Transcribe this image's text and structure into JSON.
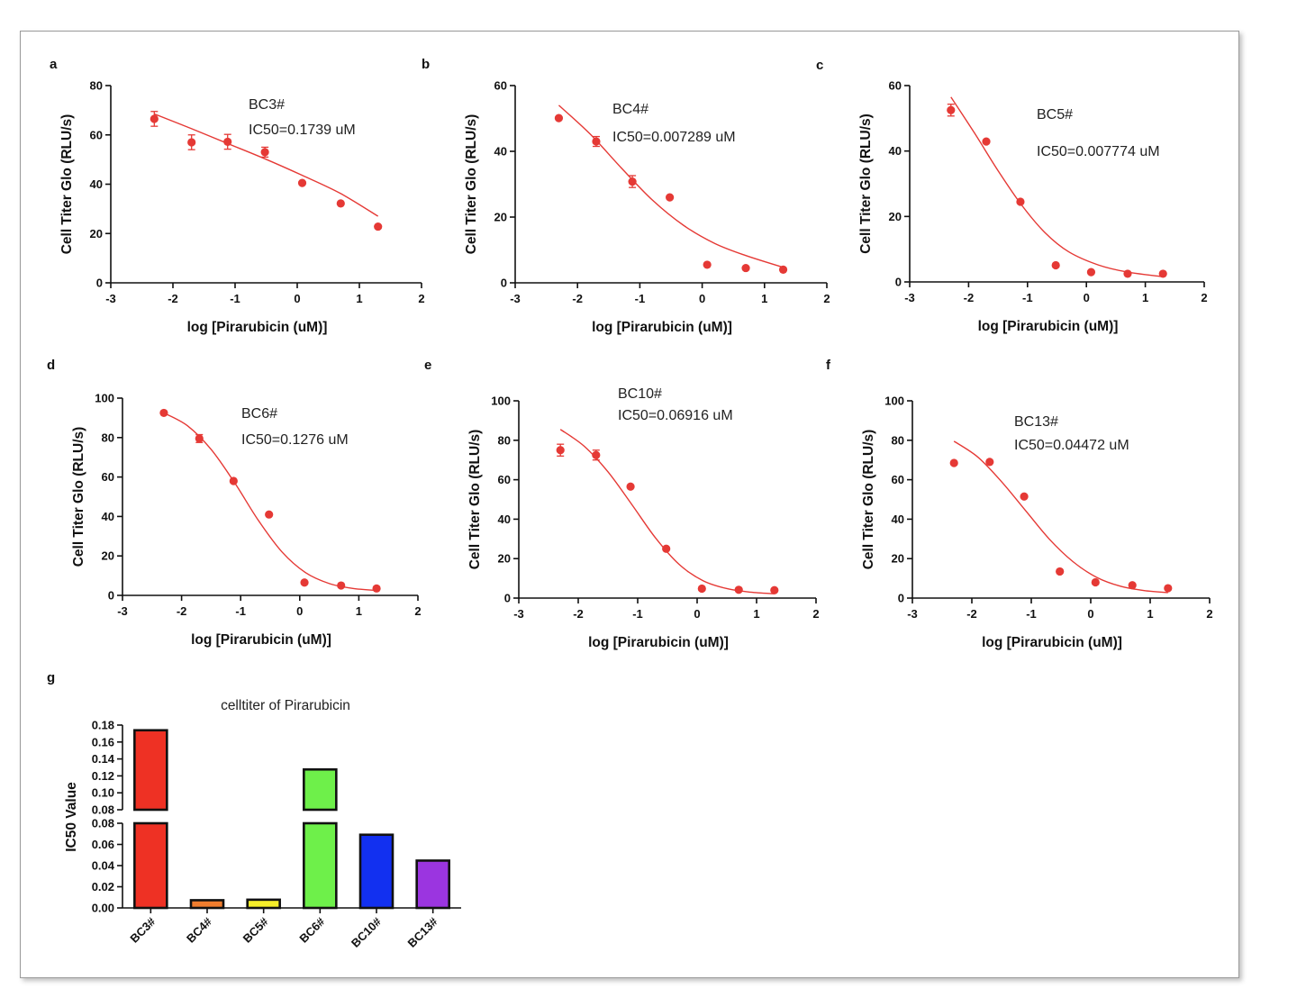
{
  "panel_labels": [
    "a",
    "b",
    "c",
    "d",
    "e",
    "f",
    "g"
  ],
  "chart_data": [
    {
      "type": "scatter",
      "panel": "a",
      "xlabel": "log [Pirarubicin (uM)]",
      "ylabel": "Cell Titer Glo (RLU/s)",
      "xlim": [
        -3,
        2
      ],
      "ylim": [
        0,
        80
      ],
      "xticks": [
        -3,
        -2,
        -1,
        0,
        1,
        2
      ],
      "yticks": [
        0,
        20,
        40,
        60,
        80
      ],
      "annotations": [
        "BC3#",
        "IC50=0.1739 uM"
      ],
      "points": [
        {
          "x": -2.3,
          "y": 66.5,
          "err": 3
        },
        {
          "x": -1.7,
          "y": 57,
          "err": 3
        },
        {
          "x": -1.12,
          "y": 57.2,
          "err": 3
        },
        {
          "x": -0.52,
          "y": 53,
          "err": 2
        },
        {
          "x": 0.08,
          "y": 40.5
        },
        {
          "x": 0.7,
          "y": 32.2
        },
        {
          "x": 1.3,
          "y": 22.8
        }
      ],
      "fit": [
        [
          -2.3,
          68.5
        ],
        [
          -1.7,
          62.5
        ],
        [
          -1.12,
          56.5
        ],
        [
          -0.52,
          50.3
        ],
        [
          0.08,
          43.6
        ],
        [
          0.7,
          36.2
        ],
        [
          1.3,
          27
        ]
      ]
    },
    {
      "type": "scatter",
      "panel": "b",
      "xlabel": "log [Pirarubicin (uM)]",
      "ylabel": "Cell Titer Glo (RLU/s)",
      "xlim": [
        -3,
        2
      ],
      "ylim": [
        0,
        60
      ],
      "xticks": [
        -3,
        -2,
        -1,
        0,
        1,
        2
      ],
      "yticks": [
        0,
        20,
        40,
        60
      ],
      "annotations": [
        "BC4#",
        "IC50=0.007289 uM"
      ],
      "points": [
        {
          "x": -2.3,
          "y": 50.1
        },
        {
          "x": -1.7,
          "y": 43,
          "err": 1.5
        },
        {
          "x": -1.12,
          "y": 30.8,
          "err": 1.8
        },
        {
          "x": -0.52,
          "y": 26
        },
        {
          "x": 0.08,
          "y": 5.5
        },
        {
          "x": 0.7,
          "y": 4.5
        },
        {
          "x": 1.3,
          "y": 4
        }
      ],
      "fit": [
        [
          -2.3,
          54
        ],
        [
          -1.8,
          45.3
        ],
        [
          -1.3,
          35
        ],
        [
          -0.8,
          25.2
        ],
        [
          -0.3,
          17.5
        ],
        [
          0.2,
          12
        ],
        [
          0.7,
          8.3
        ],
        [
          1.3,
          4.7
        ]
      ]
    },
    {
      "type": "scatter",
      "panel": "c",
      "xlabel": "log [Pirarubicin (uM)]",
      "ylabel": "Cell Titer Glo (RLU/s)",
      "xlim": [
        -3,
        2
      ],
      "ylim": [
        0,
        60
      ],
      "xticks": [
        -3,
        -2,
        -1,
        0,
        1,
        2
      ],
      "yticks": [
        0,
        20,
        40,
        60
      ],
      "annotations": [
        "BC5#",
        "IC50=0.007774 uM"
      ],
      "points": [
        {
          "x": -2.3,
          "y": 52.5,
          "err": 1.8
        },
        {
          "x": -1.7,
          "y": 42.9
        },
        {
          "x": -1.12,
          "y": 24.5
        },
        {
          "x": -0.52,
          "y": 5.1
        },
        {
          "x": 0.08,
          "y": 3
        },
        {
          "x": 0.7,
          "y": 2.5
        },
        {
          "x": 1.3,
          "y": 2.5
        }
      ],
      "fit": [
        [
          -2.3,
          56.5
        ],
        [
          -1.9,
          45.5
        ],
        [
          -1.5,
          34
        ],
        [
          -1.1,
          23.5
        ],
        [
          -0.7,
          15
        ],
        [
          -0.3,
          9.2
        ],
        [
          0.2,
          5.2
        ],
        [
          0.7,
          3
        ],
        [
          1.3,
          1.6
        ]
      ]
    },
    {
      "type": "scatter",
      "panel": "d",
      "xlabel": "log [Pirarubicin (uM)]",
      "ylabel": "Cell Titer Glo (RLU/s)",
      "xlim": [
        -3,
        2
      ],
      "ylim": [
        0,
        100
      ],
      "xticks": [
        -3,
        -2,
        -1,
        0,
        1,
        2
      ],
      "yticks": [
        0,
        20,
        40,
        60,
        80,
        100
      ],
      "annotations": [
        "BC6#",
        "IC50=0.1276 uM"
      ],
      "points": [
        {
          "x": -2.3,
          "y": 92.5
        },
        {
          "x": -1.7,
          "y": 79.5,
          "err": 2
        },
        {
          "x": -1.12,
          "y": 58
        },
        {
          "x": -0.52,
          "y": 41
        },
        {
          "x": 0.08,
          "y": 6.5
        },
        {
          "x": 0.7,
          "y": 5
        },
        {
          "x": 1.3,
          "y": 3.5
        }
      ],
      "fit": [
        [
          -2.3,
          92.5
        ],
        [
          -1.9,
          86
        ],
        [
          -1.5,
          74
        ],
        [
          -1.1,
          57
        ],
        [
          -0.7,
          38
        ],
        [
          -0.3,
          22
        ],
        [
          0.1,
          11.5
        ],
        [
          0.5,
          6
        ],
        [
          0.9,
          3.5
        ],
        [
          1.3,
          2.5
        ]
      ]
    },
    {
      "type": "scatter",
      "panel": "e",
      "xlabel": "log [Pirarubicin (uM)]",
      "ylabel": "Cell Titer Glo (RLU/s)",
      "xlim": [
        -3,
        2
      ],
      "ylim": [
        0,
        100
      ],
      "xticks": [
        -3,
        -2,
        -1,
        0,
        1,
        2
      ],
      "yticks": [
        0,
        20,
        40,
        60,
        80,
        100
      ],
      "annotations": [
        "BC10#",
        "IC50=0.06916 uM"
      ],
      "points": [
        {
          "x": -2.3,
          "y": 75,
          "err": 3
        },
        {
          "x": -1.7,
          "y": 72.5,
          "err": 2.5
        },
        {
          "x": -1.12,
          "y": 56.5
        },
        {
          "x": -0.52,
          "y": 25
        },
        {
          "x": 0.08,
          "y": 4.8
        },
        {
          "x": 0.7,
          "y": 4.2
        },
        {
          "x": 1.3,
          "y": 4
        }
      ],
      "fit": [
        [
          -2.3,
          85.5
        ],
        [
          -1.9,
          77
        ],
        [
          -1.5,
          64
        ],
        [
          -1.1,
          47.5
        ],
        [
          -0.7,
          30.5
        ],
        [
          -0.3,
          17
        ],
        [
          0.1,
          8.8
        ],
        [
          0.5,
          4.8
        ],
        [
          0.9,
          3
        ],
        [
          1.3,
          2.2
        ]
      ]
    },
    {
      "type": "scatter",
      "panel": "f",
      "xlabel": "log [Pirarubicin (uM)]",
      "ylabel": "Cell Titer Glo (RLU/s)",
      "xlim": [
        -3,
        2
      ],
      "ylim": [
        0,
        100
      ],
      "xticks": [
        -3,
        -2,
        -1,
        0,
        1,
        2
      ],
      "yticks": [
        0,
        20,
        40,
        60,
        80,
        100
      ],
      "annotations": [
        "BC13#",
        "IC50=0.04472 uM"
      ],
      "points": [
        {
          "x": -2.3,
          "y": 68.5
        },
        {
          "x": -1.7,
          "y": 69
        },
        {
          "x": -1.12,
          "y": 51.5
        },
        {
          "x": -0.52,
          "y": 13.5
        },
        {
          "x": 0.08,
          "y": 8
        },
        {
          "x": 0.7,
          "y": 6.5
        },
        {
          "x": 1.3,
          "y": 5
        }
      ],
      "fit": [
        [
          -2.3,
          79.5
        ],
        [
          -1.9,
          71.5
        ],
        [
          -1.5,
          59
        ],
        [
          -1.1,
          44.5
        ],
        [
          -0.7,
          30
        ],
        [
          -0.3,
          18.5
        ],
        [
          0.1,
          10.5
        ],
        [
          0.5,
          6
        ],
        [
          0.9,
          3.8
        ],
        [
          1.3,
          2.8
        ]
      ]
    },
    {
      "type": "bar",
      "panel": "g",
      "title": "celltiter of Pirarubicin",
      "ylabel": "IC50 Value",
      "categories": [
        "BC3#",
        "BC4#",
        "BC5#",
        "BC6#",
        "BC10#",
        "BC13#"
      ],
      "values": [
        0.1739,
        0.007289,
        0.007774,
        0.1276,
        0.06916,
        0.04472
      ],
      "colors": [
        "#ee3124",
        "#f07d2e",
        "#f5ee2a",
        "#6ef04a",
        "#1230f0",
        "#9b35e0"
      ],
      "axis_break": {
        "lower": [
          0,
          0.08
        ],
        "upper": [
          0.08,
          0.18
        ]
      },
      "yticks_lower": [
        "0.00",
        "0.02",
        "0.04",
        "0.06",
        "0.08"
      ],
      "yticks_upper": [
        "0.08",
        "0.10",
        "0.12",
        "0.14",
        "0.16",
        "0.18"
      ]
    }
  ]
}
